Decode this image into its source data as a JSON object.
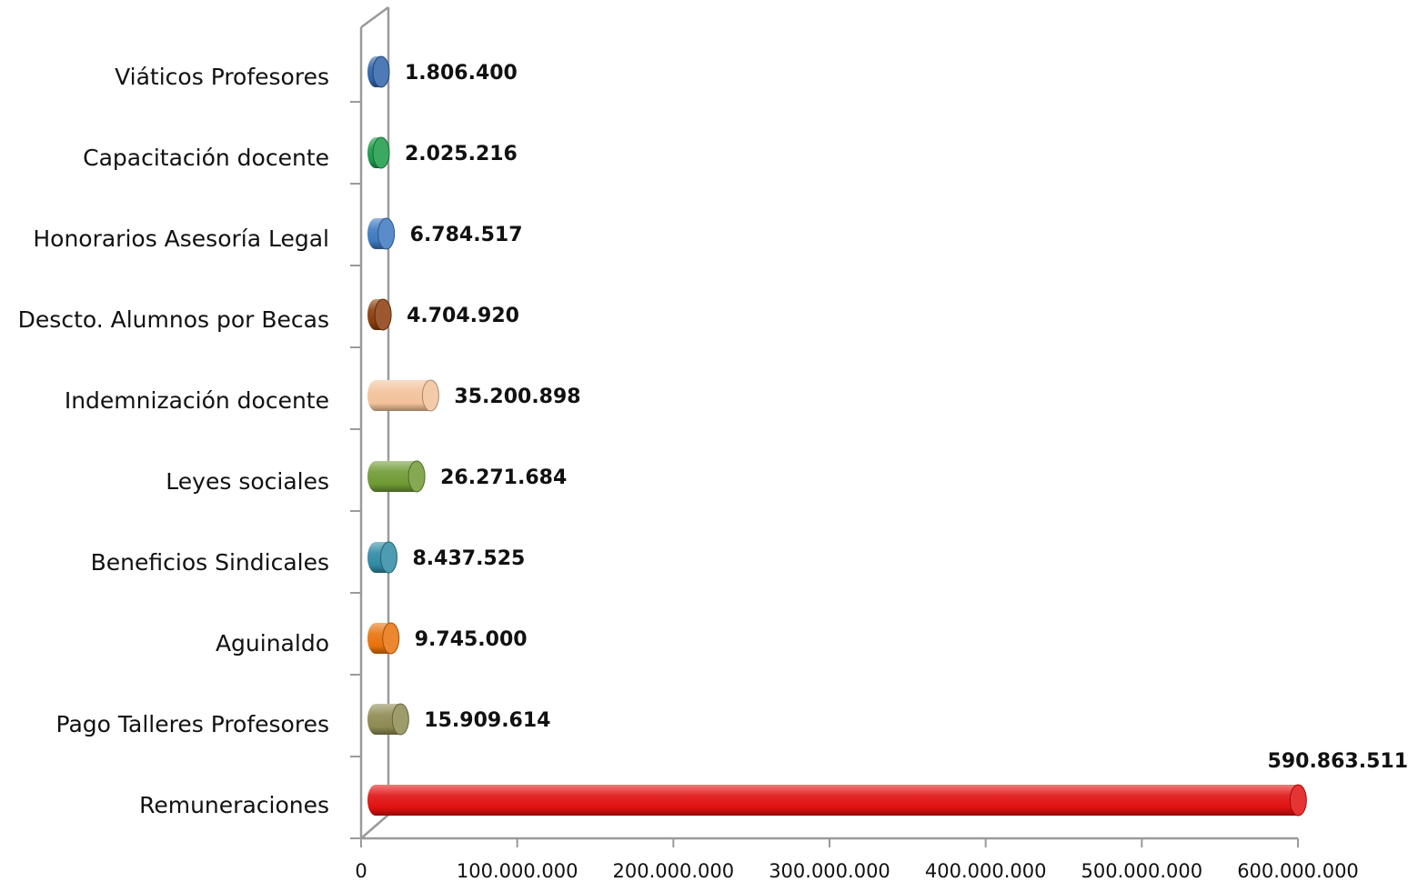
{
  "chart_data": {
    "type": "bar",
    "orientation": "horizontal",
    "style": "3d-cylinder",
    "categories": [
      "Remuneraciones",
      "Pago Talleres Profesores",
      "Aguinaldo",
      "Beneficios Sindicales",
      "Leyes sociales",
      "Indemnización docente",
      "Descto. Alumnos por Becas",
      "Honorarios Asesoría Legal",
      "Capacitación docente",
      "Viáticos Profesores"
    ],
    "values": [
      590863511,
      15909614,
      9745000,
      8437525,
      26271684,
      35200898,
      4704920,
      6784517,
      2025216,
      1806400
    ],
    "value_labels": [
      "590.863.511",
      "15.909.614",
      "9.745.000",
      "8.437.525",
      "26.271.684",
      "35.200.898",
      "4.704.920",
      "6.784.517",
      "2.025.216",
      "1.806.400"
    ],
    "bar_colors": [
      "#e01010",
      "#8e8a52",
      "#e8720c",
      "#2f8aa4",
      "#6f9a34",
      "#f2c29a",
      "#8a3c0c",
      "#3d78c0",
      "#1a9a48",
      "#2f62a8"
    ],
    "xlim": [
      0,
      600000000
    ],
    "x_ticks": [
      0,
      100000000,
      200000000,
      300000000,
      400000000,
      500000000,
      600000000
    ],
    "x_tick_labels": [
      "0",
      "100.000.000",
      "200.000.000",
      "300.000.000",
      "400.000.000",
      "500.000.000",
      "600.000.000"
    ],
    "grid": false,
    "legend": "none",
    "title": "",
    "xlabel": "",
    "ylabel": ""
  }
}
